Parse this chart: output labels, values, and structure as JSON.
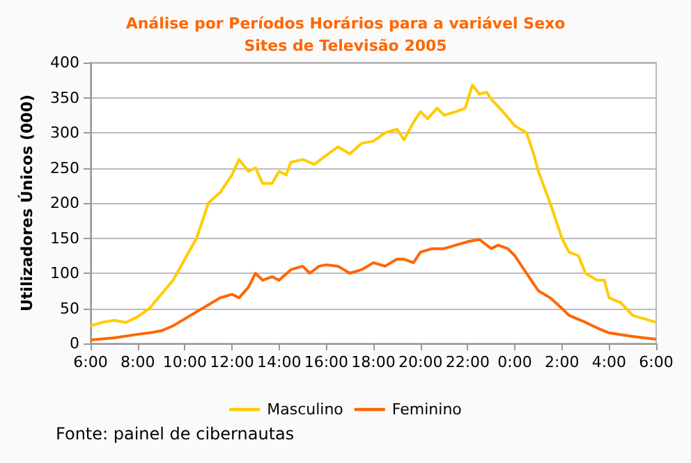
{
  "chart_data": {
    "type": "line",
    "title": "Análise por Períodos Horários para a variável Sexo\nSites de Televisão 2005",
    "ylabel": "Utilizadores Únicos (000)",
    "annotations": [
      "Fonte: painel de cibernautas"
    ],
    "x": [
      "2005-01-01T06:00",
      "2005-01-01T06:30",
      "2005-01-01T07:00",
      "2005-01-01T07:30",
      "2005-01-01T08:00",
      "2005-01-01T08:30",
      "2005-01-01T09:00",
      "2005-01-01T09:30",
      "2005-01-01T10:00",
      "2005-01-01T10:30",
      "2005-01-01T11:00",
      "2005-01-01T11:30",
      "2005-01-01T12:00",
      "2005-01-01T12:18",
      "2005-01-01T12:42",
      "2005-01-01T13:00",
      "2005-01-01T13:18",
      "2005-01-01T13:42",
      "2005-01-01T14:00",
      "2005-01-01T14:18",
      "2005-01-01T14:30",
      "2005-01-01T15:00",
      "2005-01-01T15:30",
      "2005-01-01T16:00",
      "2005-01-01T16:30",
      "2005-01-01T17:00",
      "2005-01-01T17:30",
      "2005-01-01T18:00",
      "2005-01-01T18:30",
      "2005-01-01T19:00",
      "2005-01-01T19:18",
      "2005-01-01T19:42",
      "2005-01-01T20:00",
      "2005-01-01T20:18",
      "2005-01-01T20:42",
      "2005-01-01T21:00",
      "2005-01-01T21:30",
      "2005-01-01T21:54",
      "2005-01-01T22:12",
      "2005-01-01T22:30",
      "2005-01-01T22:48",
      "2005-01-01T23:00",
      "2005-01-01T23:30",
      "2005-01-02T00:00",
      "2005-01-02T00:30",
      "2005-01-02T00:48",
      "2005-01-02T01:00",
      "2005-01-02T01:30",
      "2005-01-02T02:00",
      "2005-01-02T02:18",
      "2005-01-02T02:42",
      "2005-01-02T03:00",
      "2005-01-02T03:30",
      "2005-01-02T03:48",
      "2005-01-02T04:00",
      "2005-01-02T04:30",
      "2005-01-02T05:00",
      "2005-01-02T05:30",
      "2005-01-02T06:00"
    ],
    "series": [
      {
        "name": "Masculino",
        "color": "#ffcc00",
        "values": [
          25,
          30,
          33,
          30,
          38,
          50,
          70,
          90,
          120,
          150,
          200,
          215,
          240,
          262,
          245,
          250,
          228,
          228,
          245,
          240,
          258,
          262,
          255,
          268,
          280,
          270,
          285,
          288,
          300,
          305,
          290,
          315,
          330,
          320,
          335,
          325,
          330,
          335,
          368,
          355,
          358,
          348,
          330,
          310,
          300,
          270,
          245,
          200,
          150,
          130,
          125,
          100,
          90,
          90,
          65,
          58,
          40,
          35,
          30
        ]
      },
      {
        "name": "Feminino",
        "color": "#ff6600",
        "x": [
          "2005-01-01T06:00",
          "2005-01-01T07:00",
          "2005-01-01T08:00",
          "2005-01-01T08:30",
          "2005-01-01T09:00",
          "2005-01-01T09:30",
          "2005-01-01T10:00",
          "2005-01-01T10:30",
          "2005-01-01T11:00",
          "2005-01-01T11:30",
          "2005-01-01T12:00",
          "2005-01-01T12:18",
          "2005-01-01T12:42",
          "2005-01-01T13:00",
          "2005-01-01T13:18",
          "2005-01-01T13:42",
          "2005-01-01T14:00",
          "2005-01-01T14:30",
          "2005-01-01T15:00",
          "2005-01-01T15:18",
          "2005-01-01T15:42",
          "2005-01-01T16:00",
          "2005-01-01T16:30",
          "2005-01-01T17:00",
          "2005-01-01T17:30",
          "2005-01-01T18:00",
          "2005-01-01T18:30",
          "2005-01-01T19:00",
          "2005-01-01T19:18",
          "2005-01-01T19:42",
          "2005-01-01T20:00",
          "2005-01-01T20:30",
          "2005-01-01T21:00",
          "2005-01-01T21:30",
          "2005-01-01T22:00",
          "2005-01-01T22:30",
          "2005-01-01T23:00",
          "2005-01-01T23:18",
          "2005-01-01T23:42",
          "2005-01-02T00:00",
          "2005-01-02T00:30",
          "2005-01-02T01:00",
          "2005-01-02T01:30",
          "2005-01-02T02:00",
          "2005-01-02T02:18",
          "2005-01-02T03:00",
          "2005-01-02T03:30",
          "2005-01-02T04:00",
          "2005-01-02T05:00",
          "2005-01-02T05:30",
          "2005-01-02T06:00"
        ],
        "values": [
          5,
          8,
          13,
          15,
          18,
          25,
          35,
          45,
          55,
          65,
          70,
          65,
          80,
          100,
          90,
          95,
          90,
          105,
          110,
          100,
          110,
          112,
          110,
          100,
          105,
          115,
          110,
          120,
          120,
          115,
          130,
          135,
          135,
          140,
          145,
          148,
          135,
          140,
          135,
          125,
          100,
          75,
          65,
          50,
          40,
          30,
          22,
          15,
          10,
          8,
          6
        ]
      }
    ],
    "xlim": [
      "2005-01-01T06:00",
      "2005-01-02T06:00"
    ],
    "xticks": [
      {
        "value": "2005-01-01T06:00",
        "label": "6:00"
      },
      {
        "value": "2005-01-01T08:00",
        "label": "8:00"
      },
      {
        "value": "2005-01-01T10:00",
        "label": "10:00"
      },
      {
        "value": "2005-01-01T12:00",
        "label": "12:00"
      },
      {
        "value": "2005-01-01T14:00",
        "label": "14:00"
      },
      {
        "value": "2005-01-01T16:00",
        "label": "16:00"
      },
      {
        "value": "2005-01-01T18:00",
        "label": "18:00"
      },
      {
        "value": "2005-01-01T20:00",
        "label": "20:00"
      },
      {
        "value": "2005-01-01T22:00",
        "label": "22:00"
      },
      {
        "value": "2005-01-02T00:00",
        "label": "0:00"
      },
      {
        "value": "2005-01-02T02:00",
        "label": "2:00"
      },
      {
        "value": "2005-01-02T04:00",
        "label": "4:00"
      },
      {
        "value": "2005-01-02T06:00",
        "label": "6:00"
      }
    ],
    "ylim": [
      0,
      400
    ],
    "yticks": [
      0,
      50,
      100,
      150,
      200,
      250,
      300,
      350,
      400
    ],
    "grid": "y",
    "legend": "bottom",
    "marker": "none",
    "line_style": "solid"
  }
}
